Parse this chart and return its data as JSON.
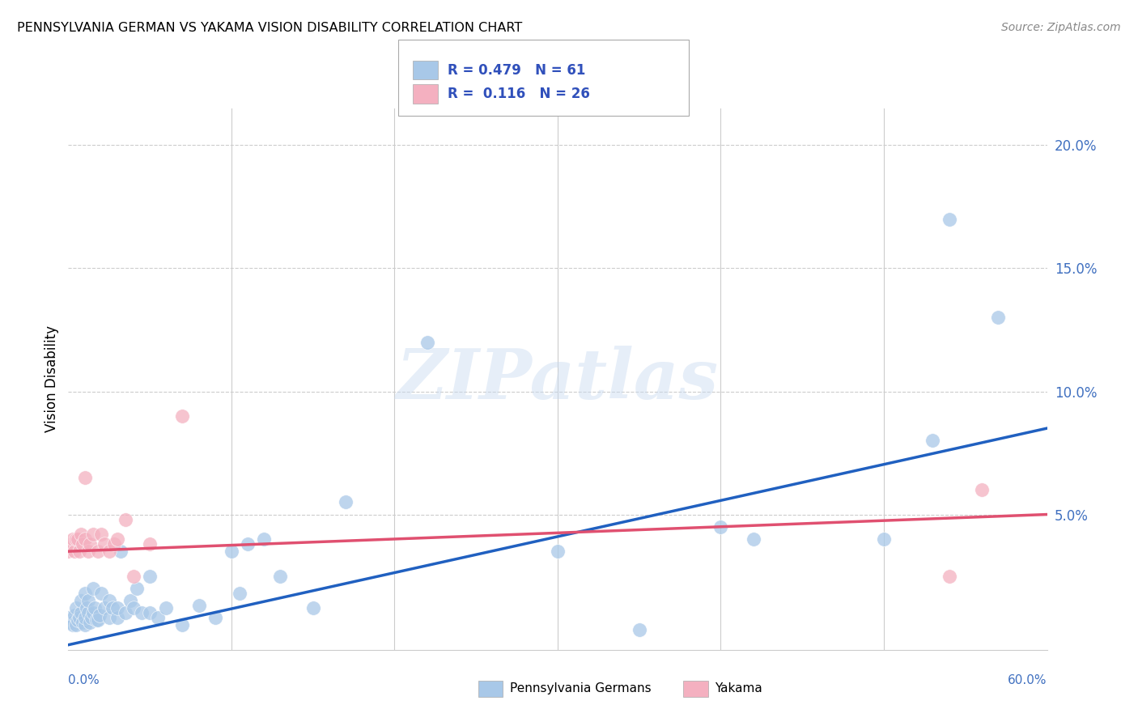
{
  "title": "PENNSYLVANIA GERMAN VS YAKAMA VISION DISABILITY CORRELATION CHART",
  "source": "Source: ZipAtlas.com",
  "ylabel": "Vision Disability",
  "ytick_vals": [
    0.0,
    0.05,
    0.1,
    0.15,
    0.2
  ],
  "ytick_labels": [
    "",
    "5.0%",
    "10.0%",
    "15.0%",
    "20.0%"
  ],
  "xlim": [
    0.0,
    0.6
  ],
  "ylim": [
    -0.005,
    0.215
  ],
  "legend_bottom_label1": "Pennsylvania Germans",
  "legend_bottom_label2": "Yakama",
  "watermark_text": "ZIPatlas",
  "blue_color": "#a8c8e8",
  "pink_color": "#f4b0c0",
  "blue_line_color": "#2060c0",
  "pink_line_color": "#e05070",
  "tick_label_color": "#4070c0",
  "legend_text_color": "#3050bb",
  "blue_N": 61,
  "pink_N": 26,
  "blue_line_x0": 0.0,
  "blue_line_y0": -0.003,
  "blue_line_x1": 0.6,
  "blue_line_y1": 0.085,
  "pink_line_x0": 0.0,
  "pink_line_y0": 0.035,
  "pink_line_x1": 0.6,
  "pink_line_y1": 0.05,
  "blue_points_x": [
    0.0,
    0.002,
    0.003,
    0.004,
    0.005,
    0.005,
    0.006,
    0.007,
    0.008,
    0.008,
    0.009,
    0.01,
    0.01,
    0.01,
    0.011,
    0.012,
    0.012,
    0.013,
    0.014,
    0.015,
    0.015,
    0.016,
    0.017,
    0.018,
    0.019,
    0.02,
    0.022,
    0.025,
    0.025,
    0.027,
    0.03,
    0.03,
    0.032,
    0.035,
    0.038,
    0.04,
    0.042,
    0.045,
    0.05,
    0.05,
    0.055,
    0.06,
    0.07,
    0.08,
    0.09,
    0.1,
    0.105,
    0.11,
    0.12,
    0.13,
    0.15,
    0.17,
    0.22,
    0.3,
    0.35,
    0.4,
    0.42,
    0.5,
    0.53,
    0.54,
    0.57
  ],
  "blue_points_y": [
    0.008,
    0.006,
    0.005,
    0.009,
    0.005,
    0.012,
    0.007,
    0.008,
    0.01,
    0.015,
    0.006,
    0.005,
    0.008,
    0.018,
    0.012,
    0.01,
    0.015,
    0.006,
    0.008,
    0.01,
    0.02,
    0.012,
    0.007,
    0.007,
    0.009,
    0.018,
    0.012,
    0.015,
    0.008,
    0.012,
    0.008,
    0.012,
    0.035,
    0.01,
    0.015,
    0.012,
    0.02,
    0.01,
    0.01,
    0.025,
    0.008,
    0.012,
    0.005,
    0.013,
    0.008,
    0.035,
    0.018,
    0.038,
    0.04,
    0.025,
    0.012,
    0.055,
    0.12,
    0.035,
    0.003,
    0.045,
    0.04,
    0.04,
    0.08,
    0.17,
    0.13
  ],
  "pink_points_x": [
    0.0,
    0.002,
    0.003,
    0.004,
    0.005,
    0.006,
    0.007,
    0.008,
    0.009,
    0.01,
    0.01,
    0.012,
    0.013,
    0.015,
    0.018,
    0.02,
    0.022,
    0.025,
    0.028,
    0.03,
    0.035,
    0.04,
    0.05,
    0.07,
    0.54,
    0.56
  ],
  "pink_points_y": [
    0.035,
    0.038,
    0.04,
    0.035,
    0.04,
    0.04,
    0.035,
    0.042,
    0.038,
    0.04,
    0.065,
    0.035,
    0.038,
    0.042,
    0.035,
    0.042,
    0.038,
    0.035,
    0.038,
    0.04,
    0.048,
    0.025,
    0.038,
    0.09,
    0.025,
    0.06
  ],
  "grid_color": "#cccccc",
  "background_color": "#ffffff"
}
